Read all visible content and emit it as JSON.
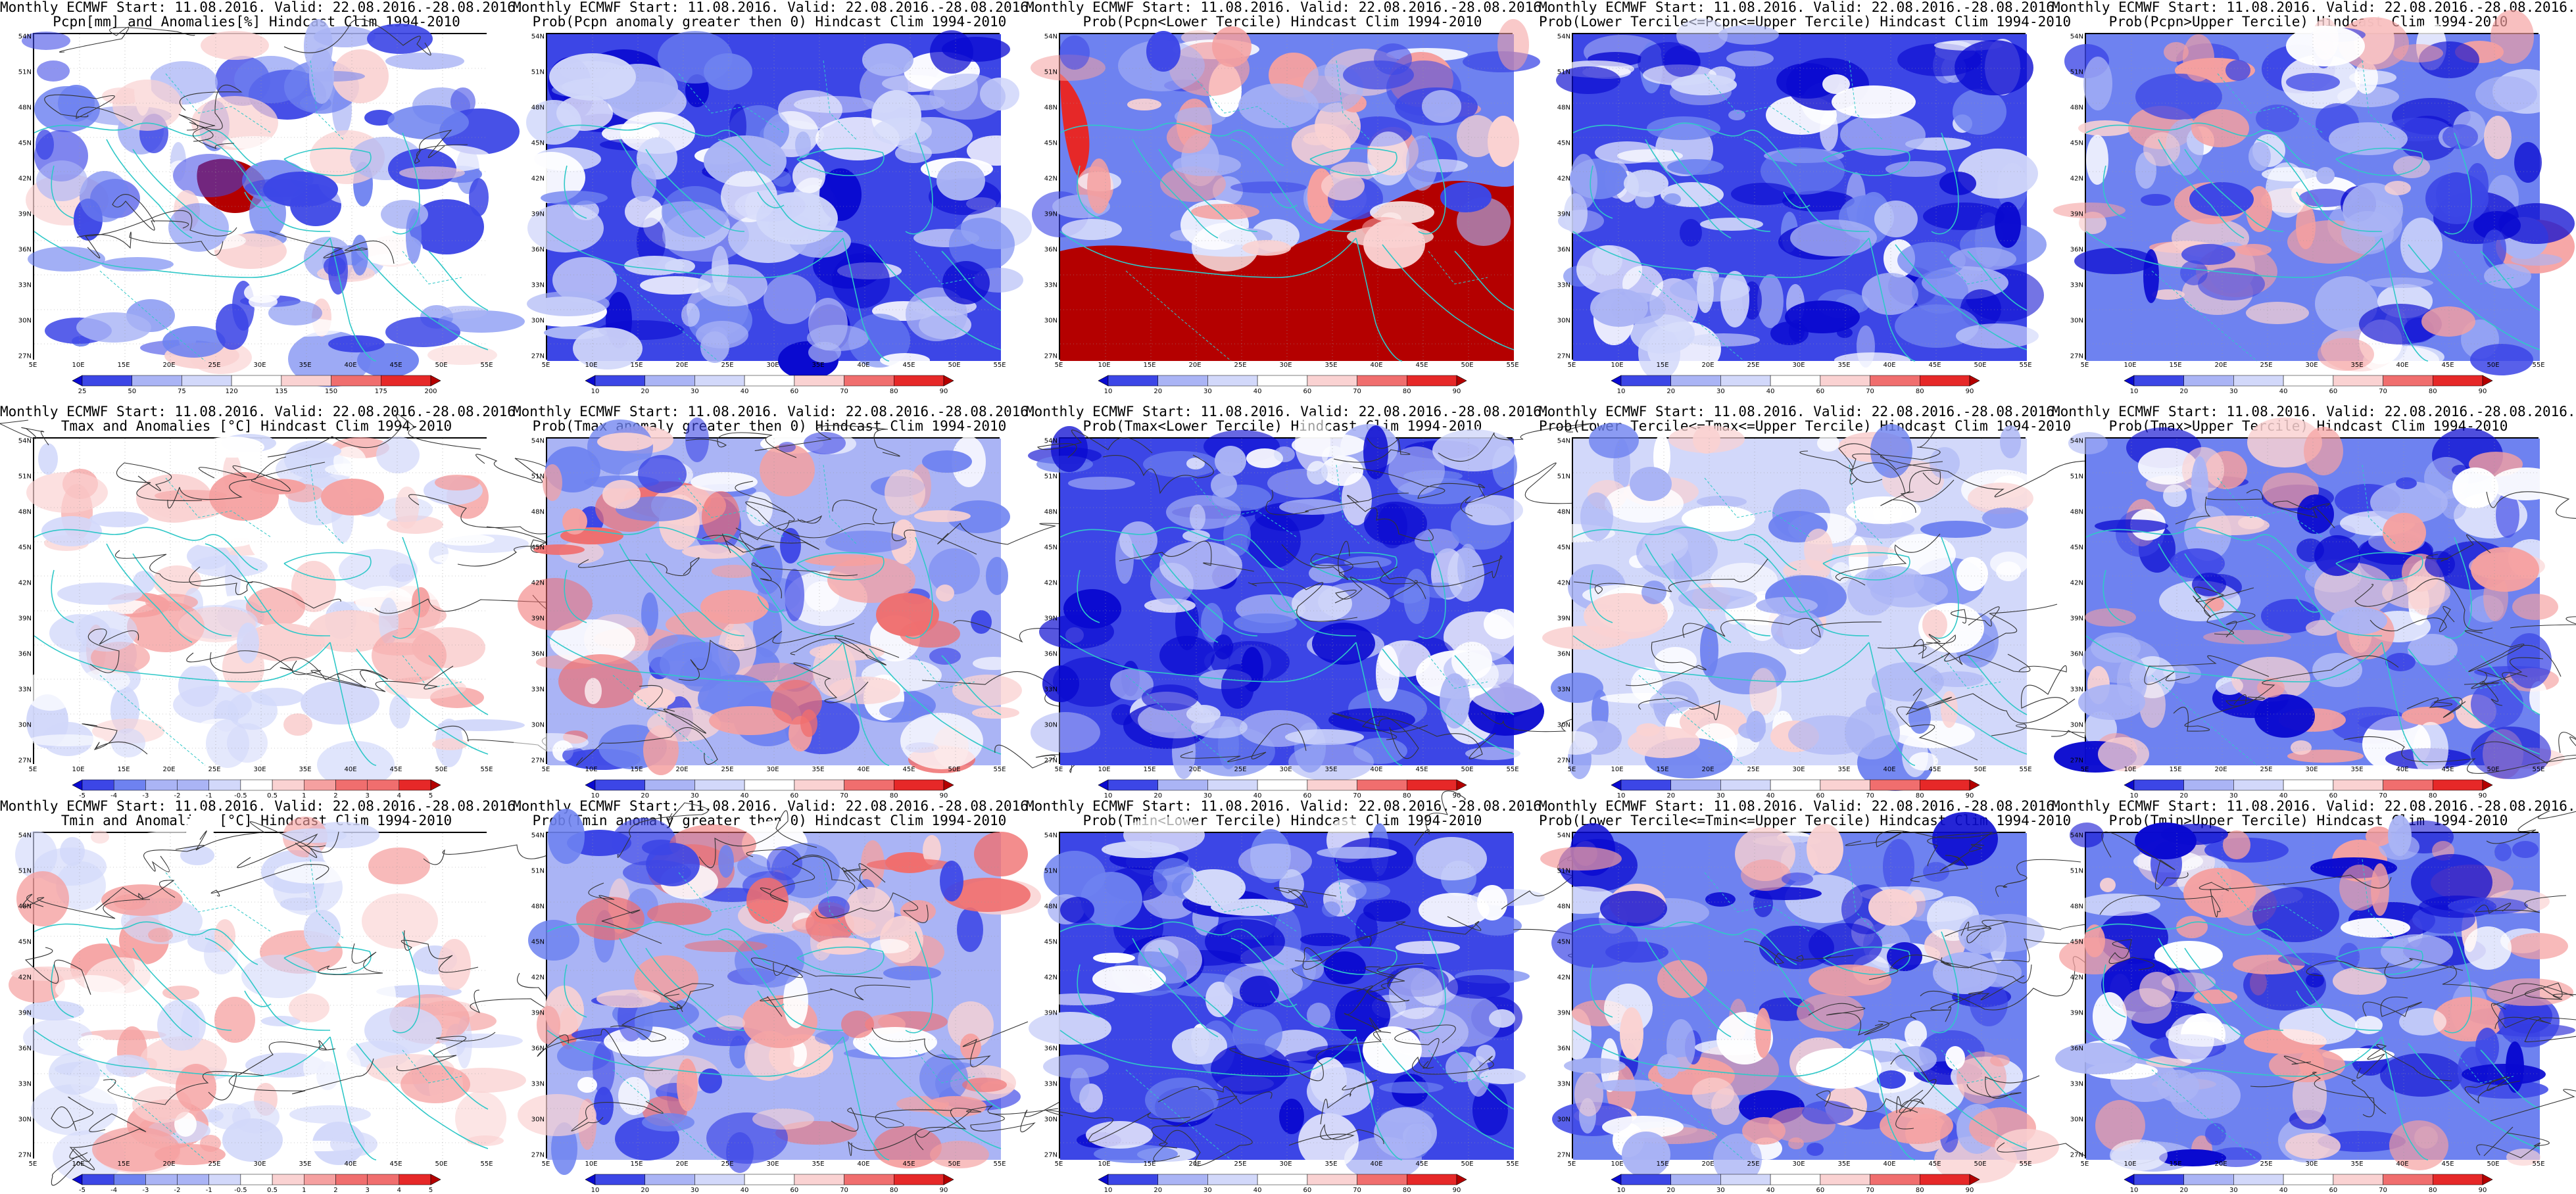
{
  "lat_ticks": [
    "54N",
    "51N",
    "48N",
    "45N",
    "42N",
    "39N",
    "36N",
    "33N",
    "30N",
    "27N"
  ],
  "lon_ticks": [
    "5E",
    "10E",
    "15E",
    "20E",
    "25E",
    "30E",
    "35E",
    "40E",
    "45E",
    "50E",
    "55E"
  ],
  "colors": {
    "deep_blue": "#0a0ad0",
    "blue": "#3c46e6",
    "mid_blue": "#6e82f0",
    "light_blue": "#aab4f5",
    "pale_blue": "#d2d8fa",
    "white": "#ffffff",
    "pale_red": "#fad2d2",
    "light_red": "#f5a0a0",
    "mid_red": "#f06e6e",
    "red": "#e62828",
    "deep_red": "#b40000",
    "coast": "#30c8c8",
    "contour": "#333333"
  },
  "colorbars": {
    "pcpn_anom": [
      "25",
      "50",
      "75",
      "120",
      "135",
      "150",
      "175",
      "200"
    ],
    "prob": [
      "10",
      "20",
      "30",
      "40",
      "60",
      "70",
      "80",
      "90"
    ],
    "temp_anom": [
      "-5",
      "-4",
      "-3",
      "-2",
      "-1",
      "-0.5",
      "0.5",
      "1",
      "2",
      "3",
      "4",
      "5"
    ]
  },
  "rows": [
    {
      "panels": [
        {
          "line1": "Monthly ECMWF Start: 11.08.2016. Valid: 22.08.2016.-28.08.2016.",
          "line2": "Pcpn[mm] and Anomalies[%] Hindcast Clim 1994-2010",
          "cbar": "pcpn_anom",
          "scheme": "pcpn_anom"
        },
        {
          "line1": "Monthly ECMWF Start: 11.08.2016. Valid: 22.08.2016.-28.08.2016.",
          "line2": "Prob(Pcpn anomaly greater then 0) Hindcast Clim 1994-2010",
          "cbar": "prob",
          "scheme": "blue"
        },
        {
          "line1": "Monthly ECMWF Start: 11.08.2016. Valid: 22.08.2016.-28.08.2016.",
          "line2": "Prob(Pcpn<Lower Tercile) Hindcast Clim 1994-2010",
          "cbar": "prob",
          "scheme": "red_south"
        },
        {
          "line1": "Monthly ECMWF Start: 11.08.2016. Valid: 22.08.2016.-28.08.2016.",
          "line2": "Prob(Lower Tercile<=Pcpn<=Upper Tercile) Hindcast Clim 1994-2010",
          "cbar": "prob",
          "scheme": "blue"
        },
        {
          "line1": "Monthly ECMWF Start: 11.08.2016. Valid: 22.08.2016.-28.08.2016.",
          "line2": "Prob(Pcpn>Upper Tercile) Hindcast Clim 1994-2010",
          "cbar": "prob",
          "scheme": "blue_mix"
        }
      ]
    },
    {
      "panels": [
        {
          "line1": "Monthly ECMWF Start: 11.08.2016. Valid: 22.08.2016.-28.08.2016.",
          "line2": "Tmax and Anomalies [°C] Hindcast Clim 1994-2010",
          "cbar": "temp_anom",
          "scheme": "pale_red"
        },
        {
          "line1": "Monthly ECMWF Start: 11.08.2016. Valid: 22.08.2016.-28.08.2016.",
          "line2": "Prob(Tmax anomaly greater then 0) Hindcast Clim 1994-2010",
          "cbar": "prob",
          "scheme": "mixed_red"
        },
        {
          "line1": "Monthly ECMWF Start: 11.08.2016. Valid: 22.08.2016.-28.08.2016.",
          "line2": "Prob(Tmax<Lower Tercile) Hindcast Clim 1994-2010",
          "cbar": "prob",
          "scheme": "blue"
        },
        {
          "line1": "Monthly ECMWF Start: 11.08.2016. Valid: 22.08.2016.-28.08.2016.",
          "line2": "Prob(Lower Tercile<=Tmax<=Upper Tercile) Hindcast Clim 1994-2010",
          "cbar": "prob",
          "scheme": "pale_blue"
        },
        {
          "line1": "Monthly ECMWF Start: 11.08.2016. Valid: 22.08.2016.-28.08.2016.",
          "line2": "Prob(Tmax>Upper Tercile) Hindcast Clim 1994-2010",
          "cbar": "prob",
          "scheme": "blue_mix"
        }
      ]
    },
    {
      "panels": [
        {
          "line1": "Monthly ECMWF Start: 11.08.2016. Valid: 22.08.2016.-28.08.2016.",
          "line2": "Tmin and Anomalies [°C] Hindcast Clim 1994-2010",
          "cbar": "temp_anom",
          "scheme": "pale_red"
        },
        {
          "line1": "Monthly ECMWF Start: 11.08.2016. Valid: 22.08.2016.-28.08.2016.",
          "line2": "Prob(Tmin anomaly greater then 0) Hindcast Clim 1994-2010",
          "cbar": "prob",
          "scheme": "mixed_red"
        },
        {
          "line1": "Monthly ECMWF Start: 11.08.2016. Valid: 22.08.2016.-28.08.2016.",
          "line2": "Prob(Tmin<Lower Tercile) Hindcast Clim 1994-2010",
          "cbar": "prob",
          "scheme": "blue"
        },
        {
          "line1": "Monthly ECMWF Start: 11.08.2016. Valid: 22.08.2016.-28.08.2016.",
          "line2": "Prob(Lower Tercile<=Tmin<=Upper Tercile) Hindcast Clim 1994-2010",
          "cbar": "prob",
          "scheme": "blue_mix"
        },
        {
          "line1": "Monthly ECMWF Start: 11.08.2016. Valid: 22.08.2016.-28.08.2016.",
          "line2": "Prob(Tmin>Upper Tercile) Hindcast Clim 1994-2010",
          "cbar": "prob",
          "scheme": "blue_mix"
        }
      ]
    }
  ]
}
